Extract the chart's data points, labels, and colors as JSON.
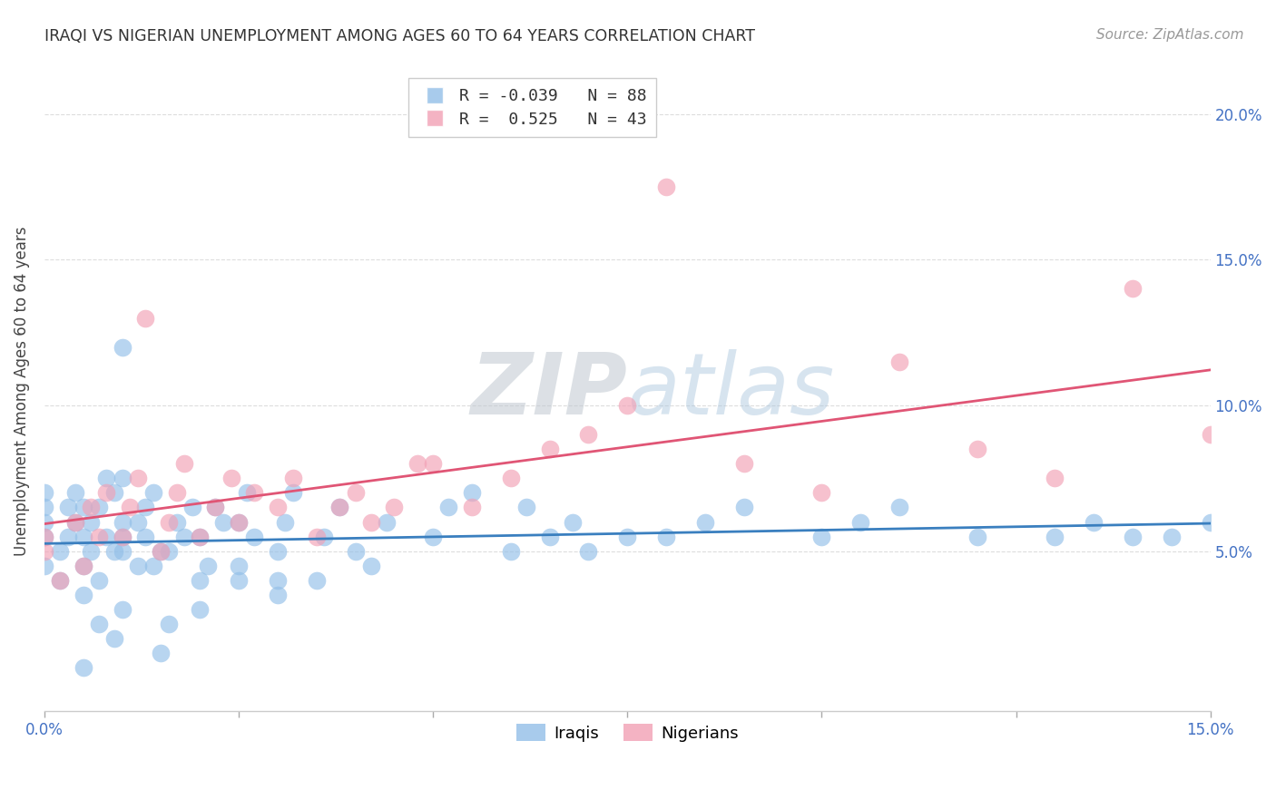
{
  "title": "IRAQI VS NIGERIAN UNEMPLOYMENT AMONG AGES 60 TO 64 YEARS CORRELATION CHART",
  "source": "Source: ZipAtlas.com",
  "ylabel": "Unemployment Among Ages 60 to 64 years",
  "xlim": [
    0.0,
    0.15
  ],
  "ylim": [
    -0.005,
    0.215
  ],
  "iraqi_R": -0.039,
  "iraqi_N": 88,
  "nigerian_R": 0.525,
  "nigerian_N": 43,
  "iraqi_color": "#92BFE8",
  "nigerian_color": "#F2A0B5",
  "iraqi_line_color": "#3A7FBF",
  "nigerian_line_color": "#E05575",
  "grid_color": "#DDDDDD",
  "tick_label_color": "#4472C4",
  "title_color": "#333333",
  "source_color": "#999999",
  "watermark_color": "#C8D8E8",
  "iraqi_x": [
    0.0,
    0.0,
    0.0,
    0.0,
    0.0,
    0.002,
    0.002,
    0.003,
    0.003,
    0.004,
    0.004,
    0.005,
    0.005,
    0.005,
    0.005,
    0.006,
    0.006,
    0.007,
    0.007,
    0.008,
    0.008,
    0.009,
    0.009,
    0.01,
    0.01,
    0.01,
    0.01,
    0.01,
    0.012,
    0.012,
    0.013,
    0.013,
    0.014,
    0.014,
    0.015,
    0.016,
    0.016,
    0.017,
    0.018,
    0.019,
    0.02,
    0.02,
    0.021,
    0.022,
    0.023,
    0.025,
    0.025,
    0.026,
    0.027,
    0.03,
    0.03,
    0.031,
    0.032,
    0.035,
    0.036,
    0.038,
    0.04,
    0.042,
    0.044,
    0.05,
    0.052,
    0.055,
    0.06,
    0.062,
    0.065,
    0.068,
    0.07,
    0.075,
    0.08,
    0.085,
    0.09,
    0.1,
    0.105,
    0.11,
    0.12,
    0.13,
    0.135,
    0.14,
    0.145,
    0.15,
    0.01,
    0.005,
    0.007,
    0.009,
    0.015,
    0.02,
    0.025,
    0.03
  ],
  "iraqi_y": [
    0.045,
    0.055,
    0.065,
    0.07,
    0.06,
    0.04,
    0.05,
    0.055,
    0.065,
    0.06,
    0.07,
    0.035,
    0.045,
    0.055,
    0.065,
    0.05,
    0.06,
    0.04,
    0.065,
    0.055,
    0.075,
    0.05,
    0.07,
    0.03,
    0.05,
    0.06,
    0.055,
    0.075,
    0.045,
    0.06,
    0.055,
    0.065,
    0.045,
    0.07,
    0.05,
    0.025,
    0.05,
    0.06,
    0.055,
    0.065,
    0.04,
    0.055,
    0.045,
    0.065,
    0.06,
    0.045,
    0.06,
    0.07,
    0.055,
    0.035,
    0.05,
    0.06,
    0.07,
    0.04,
    0.055,
    0.065,
    0.05,
    0.045,
    0.06,
    0.055,
    0.065,
    0.07,
    0.05,
    0.065,
    0.055,
    0.06,
    0.05,
    0.055,
    0.055,
    0.06,
    0.065,
    0.055,
    0.06,
    0.065,
    0.055,
    0.055,
    0.06,
    0.055,
    0.055,
    0.06,
    0.12,
    0.01,
    0.025,
    0.02,
    0.015,
    0.03,
    0.04,
    0.04
  ],
  "nigerian_x": [
    0.0,
    0.0,
    0.002,
    0.004,
    0.005,
    0.006,
    0.007,
    0.008,
    0.01,
    0.011,
    0.012,
    0.013,
    0.015,
    0.016,
    0.017,
    0.018,
    0.02,
    0.022,
    0.024,
    0.025,
    0.027,
    0.03,
    0.032,
    0.035,
    0.038,
    0.04,
    0.042,
    0.045,
    0.048,
    0.05,
    0.055,
    0.06,
    0.065,
    0.07,
    0.075,
    0.08,
    0.09,
    0.1,
    0.11,
    0.12,
    0.13,
    0.14,
    0.15
  ],
  "nigerian_y": [
    0.05,
    0.055,
    0.04,
    0.06,
    0.045,
    0.065,
    0.055,
    0.07,
    0.055,
    0.065,
    0.075,
    0.13,
    0.05,
    0.06,
    0.07,
    0.08,
    0.055,
    0.065,
    0.075,
    0.06,
    0.07,
    0.065,
    0.075,
    0.055,
    0.065,
    0.07,
    0.06,
    0.065,
    0.08,
    0.08,
    0.065,
    0.075,
    0.085,
    0.09,
    0.1,
    0.175,
    0.08,
    0.07,
    0.115,
    0.085,
    0.075,
    0.14,
    0.09
  ],
  "ytick_positions": [
    0.05,
    0.1,
    0.15,
    0.2
  ],
  "ytick_labels": [
    "5.0%",
    "10.0%",
    "15.0%",
    "20.0%"
  ],
  "xtick_positions": [
    0.0,
    0.025,
    0.05,
    0.075,
    0.1,
    0.125,
    0.15
  ],
  "xtick_labels": [
    "0.0%",
    "",
    "",
    "",
    "",
    "",
    "15.0%"
  ]
}
